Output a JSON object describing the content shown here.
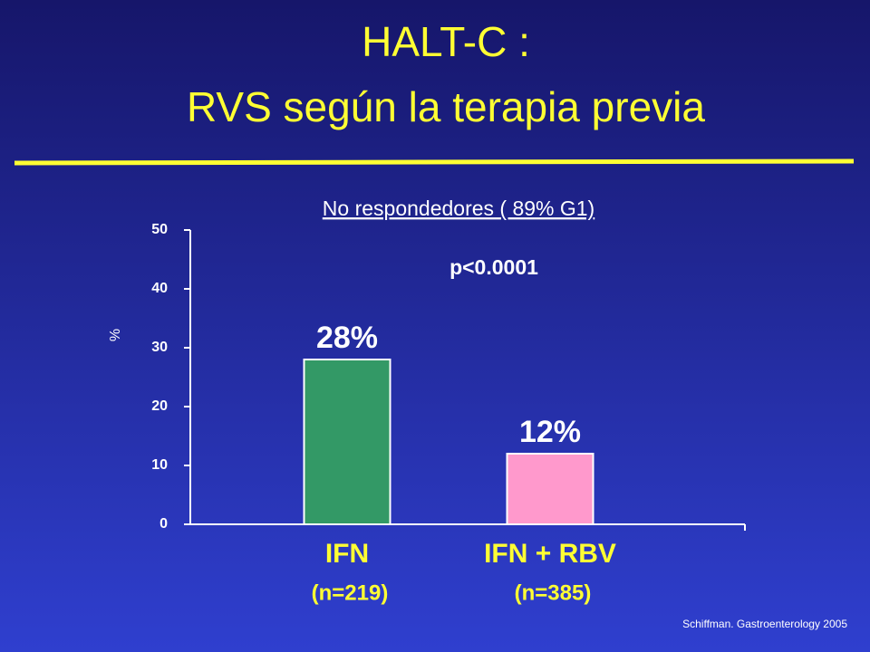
{
  "chart_data": {
    "type": "bar",
    "title": [
      "HALT-C :",
      "RVS  según la terapia previa"
    ],
    "subtitle": "No respondedores ( 89% G1)",
    "annotation": "p<0.0001",
    "y_label": "%",
    "source": "Schiffman. Gastroenterology 2005",
    "categories": [
      "IFN",
      "IFN + RBV"
    ],
    "category_sublabels": [
      "(n=219)",
      "(n=385)"
    ],
    "values": [
      28,
      12
    ],
    "value_labels": [
      "28%",
      "12%"
    ],
    "colors": [
      "#339966",
      "#ff99cc"
    ],
    "ylim": [
      0,
      50
    ],
    "yticks": [
      0,
      10,
      20,
      30,
      40,
      50
    ]
  }
}
